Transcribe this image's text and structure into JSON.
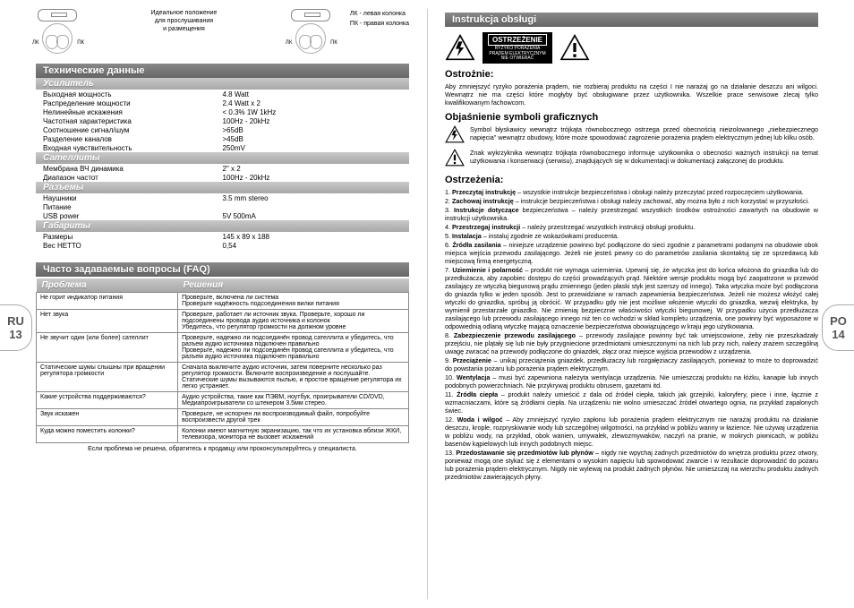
{
  "tabs": {
    "left_lang": "RU",
    "left_num": "13",
    "right_lang": "PO",
    "right_num": "14"
  },
  "setup": {
    "ideal": "Идеальное положение\nдля прослушивания\nи размещения",
    "lk": "ЛК",
    "pk": "ПК",
    "lk_full": "ЛК  - левая колонка",
    "pk_full": "ПК  - правая колонка"
  },
  "tech": {
    "title": "Технические данные",
    "amp": "Усилитель",
    "amp_rows": [
      [
        "Выходная мощность",
        "4.8 Watt"
      ],
      [
        "Распределение мощности",
        "2.4 Watt x 2"
      ],
      [
        "Нелинейные искажения",
        "< 0.3% 1W 1kHz"
      ],
      [
        "Частотная характеристика",
        "100Hz - 20kHz"
      ],
      [
        "Соотношение сигнал/шум",
        ">65dB"
      ],
      [
        "Разделение каналов",
        ">45dB"
      ],
      [
        "Входная чувствительность",
        "250mV"
      ]
    ],
    "sat": "Сателлиты",
    "sat_rows": [
      [
        "Мембрана ВЧ динамика",
        "2\" x 2"
      ],
      [
        "Диапазон частот",
        "100Hz - 20kHz"
      ]
    ],
    "con": "Разъемы",
    "con_rows": [
      [
        "Наушники",
        "3.5 mm stereo"
      ],
      [
        "Питание",
        ""
      ],
      [
        "USB power",
        "5V 500mA"
      ]
    ],
    "dim": "Габариты",
    "dim_rows": [
      [
        "Размеры",
        "145 x 89 x 188"
      ],
      [
        "Вес НЕТТО",
        "0,54"
      ]
    ]
  },
  "faq": {
    "title": "Часто задаваемые вопросы (FAQ)",
    "h1": "Проблема",
    "h2": "Решения",
    "rows": [
      [
        "Не горит индикатор питания",
        "Проверьте, включена ли система\nПроверьте надёжность подсоединения вилки питания"
      ],
      [
        "Нет звука",
        "Проверьте, работает ли источник звука. Проверьте, хорошо ли подсоединены провода аудио источника и колонок\nУбедитесь, что регулятор громкости на должном уровне"
      ],
      [
        "Не звучит один (или более) сателлит",
        "Проверьте, надежно ли подсоединён провод сателлита и убедитесь, что разъем аудио источника подключен правильно\nПроверьте, надежно ли подсоединён провод сателлита и убедитесь, что разъем аудио источника подключен правильно"
      ],
      [
        "Статические шумы слышны при вращении регулятора громкости",
        "Сначала выключите аудио источник, затем поверните несколько раз регулятор громкости. Включите воспроизведение и послушайте. Статические шумы вызываются пылью, и простое вращение регулятора их легко устраняет."
      ],
      [
        "Какие устройства поддерживаются?",
        "Аудио устройства, такие как ПЭВМ, ноутбук, проигрыватели CD/DVD, Медиапроигрыватели со штекером 3.5мм стерео."
      ],
      [
        "Звук искажен",
        "Проверьте, не испорчен ли воспроизводимый файл, попробуйте воспроизвести другой трек"
      ],
      [
        "Куда можно поместить колонки?",
        "Колонки имеют магнитную экранизацию, так что их установка вблизи ЖКИ, телевизора, монитора не вызовет искажений"
      ]
    ],
    "note": "Если проблема не решена, обратитесь к продавцу или проконсультируйтесь у специалиста."
  },
  "manual": {
    "title": "Instrukcja obsługi",
    "warn_label": "OSTRZEŻENIE",
    "warn_sub": "RYZYKO PORAŻENIA\nPRĄDEM ELEKTRYCZNYM\nNIE OTWIERAĆ",
    "caution_h": "Ostrożnie:",
    "caution_t": "Aby zmniejszyć ryzyko porażenia prądem, nie rozbieraj produktu na części I nie narażaj go na działanie deszczu ani wilgoci. Wewnątrz nie ma części które mogłyby być obsługiwane przez użytkownika. Wszelkie prace serwisowe zlecaj tylko kwalifikowanym fachowcom.",
    "sym_h": "Objaśnienie symboli graficznych",
    "sym1": "Symbol błyskawicy wewnątrz trójkąta równobocznego ostrzega przed obecnością nieizolowanego „niebezpiecznego napięcia\" wewnątrz obudowy, które może spowodować zagrożenie porażenia prądem elektrycznym jednej lub kilku osób.",
    "sym2": "Znak wykrzyknika wewnątrz trójkąta równobocznego informuje użytkownika o obecności ważnych instrukcji na temat użytkowania i konserwacji (serwisu), znajdujących się w dokumentacji w dokumentacji załączonej do produktu.",
    "warn_h": "Ostrzeżenia:",
    "items": [
      "1. <b>Przeczytaj instrukcję</b> – wszystkie instrukcje bezpieczeństwa i obsługi należy przeczytać przed rozpoczęciem użytkowania.",
      "2. <b>Zachowaj instrukcję</b> – instrukcje bezpieczeństwa i obsługi należy zachować, aby można było z nich korzystać w przyszłości.",
      "3. <b>Instrukcje dotyczące</b> bezpieczeństwa – należy przestrzegać wszystkich środków ostrożności zawartych na obudowie w instrukcji użytkownika.",
      "4. <b>Przestrzegaj instrukcji</b> – należy przestrzegać wszystkich instrukcji obsługi produktu.",
      "5. <b>Instalacja</b> – instaluj zgodnie ze wskazówkami producenta.",
      "6. <b>Źródła zasilania</b> – niniejsze urządzenie powinno być podłączone do sieci zgodnie z parametrami podanymi na obudowie obok miejsca wejścia przewodu zasilającego. Jeżeli nie jesteś pewny co do parametrów zasilania skontaktuj się ze sprzedawcą lub miejscową firmą energetyczną.",
      "7. <b>Uziemienie i polarność</b> – produkt nie wymaga uziemienia. Upewnij się, że wtyczka jest do końca włożona do gniazdka lub do przedłużacza, aby zapobiec dostępu do części prowadzących prąd. Niektóre wersje produktu mogą być zaopatrzone w przewód zasilający ze wtyczką biegunową prądu zmiennego (jeden płaski styk jest szerszy od innego). Taka wtyczka może być podłączona do gniazda tylko w jeden sposób. Jest to przewidziane w ramach zapewnienia bezpieczeństwa. Jeżeli nie możesz włożyć całej wtyczki do gniazdka, spróbuj ją obrócić. W przypadku gdy nie jest możliwe włożenie wtyczki do gniazdka, wezwij elektryka, by wymienił przestarzałe gniazdko. Nie zmieniaj bezpiecznie właściwości wtyczki biegunowej. W przypadku użycia przedłużacza zasilającego lub przewodu zasilającego innego niż ten co wchodzi w skład kompletu urządzenia, one powinny być wyposażone w odpowiednią odlaną wtyczkę mającą oznaczenie bezpieczeństwa obowiązującego w kraju jego użytkowania.",
      "8. <b>Zabezpieczenie przewodu zasilającego</b> – przewody zasilające powinny być tak umiejscowione, żeby nie przeszkadzały przejściu, nie plątały się lub nie były przygniecione przedmiotami umieszczonymi na nich lub przy nich, należy zrażem szczególną uwagę zwracać na przewody podłączone do gniazdek, złącz oraz miejsce wyjścia przewodów z urządzenia.",
      "9. <b>Przeciążenie</b> – unikaj przeciążenia gniazdek, przedłużaczy lub rozgałęziaczy zasilających, ponieważ to może to doprowadzić do powstania pożaru lub porażenia prądem elektrycznym.",
      "10. <b>Wentylacja</b> – musi być zapewniona należyta wentylacja urządzenia. Nie umieszczaj produktu na łóżku, kanapie lub innych podobnych powierzchniach. Nie przykrywaj produktu obrusem, gazetami itd.",
      "11. <b>Źródła ciepła</b> – produkt należy umieścić z dala od źródeł ciepła, takich jak grzejniki, kaloryfery, piece i inne, łącznie z wzmacniaczami, które są źródłami ciepła. Na urządzeniu nie wolno umieszczać źródeł otwartego ognia, na przykład zapalonych świec.",
      "12. <b>Woda i wilgoć</b> – Aby zmniejszyć ryzyko zapłonu lub porażenia prądem elektrycznym nie narażaj produktu na działanie deszczu, krople, rozpryskiwanie wody lub szczególnej wilgotności, na przykład w pobliżu wanny w łazience. Nie używaj urządzenia w pobliżu wody, na przykład, obok wanien, umywalek, zlewozmywaków, naczyń na pranie, w mokrych piwnicach, w pobliżu basenów kąpielowych lub innych podobnych miejsc.",
      "13. <b>Przedostawanie się przedmiotów lub płynów</b> – nigdy nie wpychaj żadnych przedmiotów do wnętrza produktu przez otwory, ponieważ mogą one stykać się z elementami o wysokim napięciu lub spowodować zwarcie i w rezultacie doprowadzić do pożaru lub porażenia prądem elektrycznym. Nigdy nie wylewaj na produkt żadnych płynów. Nie umieszczaj na wierzchu produktu żadnych przedmiotów zawierających płyny."
    ]
  }
}
